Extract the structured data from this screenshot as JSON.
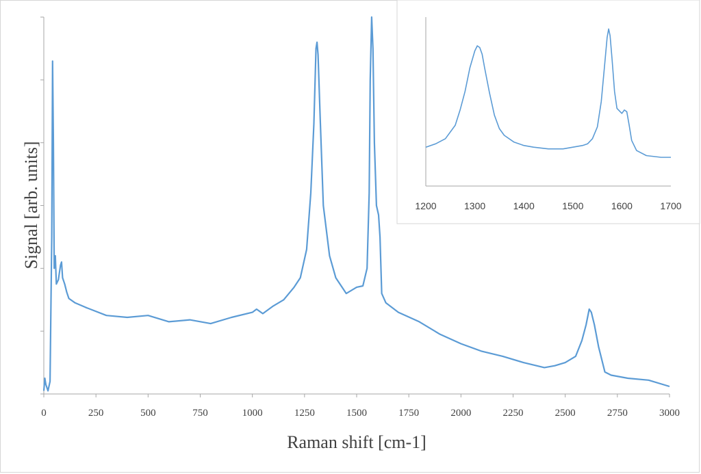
{
  "chart_data": [
    {
      "type": "line",
      "xlabel": "Raman shift [cm-1]",
      "ylabel": "Signal [arb. units]",
      "xlim": [
        0,
        3000
      ],
      "ylim": [
        0,
        6
      ],
      "x_ticks": [
        0,
        250,
        500,
        750,
        1000,
        1250,
        1500,
        1750,
        2000,
        2250,
        2500,
        2750,
        3000
      ],
      "y_ticks_labeled": false,
      "grid": false,
      "line_color": "#5b9bd5",
      "series": [
        {
          "x": [
            0,
            5,
            10,
            20,
            30,
            38,
            42,
            46,
            50,
            55,
            60,
            70,
            80,
            85,
            90,
            100,
            110,
            120,
            150,
            200,
            300,
            400,
            500,
            600,
            700,
            800,
            900,
            1000,
            1020,
            1050,
            1100,
            1150,
            1200,
            1230,
            1260,
            1280,
            1295,
            1305,
            1310,
            1315,
            1325,
            1340,
            1370,
            1400,
            1450,
            1500,
            1530,
            1550,
            1560,
            1565,
            1572,
            1578,
            1585,
            1595,
            1605,
            1612,
            1620,
            1640,
            1700,
            1800,
            1900,
            2000,
            2100,
            2200,
            2300,
            2400,
            2450,
            2500,
            2550,
            2580,
            2600,
            2615,
            2625,
            2640,
            2660,
            2690,
            2720,
            2800,
            2900,
            3000
          ],
          "y": [
            0.05,
            0.25,
            0.15,
            0.05,
            0.2,
            2.5,
            5.3,
            4.0,
            2.0,
            2.2,
            1.75,
            1.82,
            2.05,
            2.1,
            1.85,
            1.75,
            1.62,
            1.52,
            1.45,
            1.38,
            1.25,
            1.22,
            1.25,
            1.15,
            1.18,
            1.12,
            1.22,
            1.3,
            1.35,
            1.28,
            1.4,
            1.5,
            1.7,
            1.85,
            2.3,
            3.2,
            4.3,
            5.5,
            5.6,
            5.4,
            4.4,
            3.0,
            2.2,
            1.85,
            1.6,
            1.7,
            1.72,
            2.0,
            3.2,
            5.0,
            6.0,
            5.5,
            4.0,
            3.0,
            2.85,
            2.5,
            1.6,
            1.45,
            1.3,
            1.15,
            0.95,
            0.8,
            0.68,
            0.6,
            0.5,
            0.42,
            0.45,
            0.5,
            0.6,
            0.85,
            1.1,
            1.35,
            1.3,
            1.1,
            0.75,
            0.35,
            0.3,
            0.25,
            0.22,
            0.12
          ]
        }
      ]
    },
    {
      "type": "line",
      "xlim": [
        1200,
        1700
      ],
      "ylim": [
        0,
        1
      ],
      "x_ticks": [
        1200,
        1300,
        1400,
        1500,
        1600,
        1700
      ],
      "y_ticks_labeled": false,
      "grid": false,
      "line_color": "#5b9bd5",
      "series": [
        {
          "x": [
            1200,
            1220,
            1240,
            1260,
            1270,
            1280,
            1290,
            1300,
            1305,
            1310,
            1315,
            1320,
            1330,
            1340,
            1350,
            1360,
            1380,
            1400,
            1420,
            1450,
            1480,
            1500,
            1520,
            1530,
            1540,
            1550,
            1558,
            1565,
            1570,
            1573,
            1576,
            1580,
            1585,
            1590,
            1600,
            1605,
            1610,
            1615,
            1620,
            1630,
            1650,
            1680,
            1700
          ],
          "y": [
            0.23,
            0.25,
            0.28,
            0.36,
            0.45,
            0.56,
            0.7,
            0.8,
            0.83,
            0.82,
            0.78,
            0.7,
            0.55,
            0.42,
            0.34,
            0.3,
            0.26,
            0.24,
            0.23,
            0.22,
            0.22,
            0.23,
            0.24,
            0.25,
            0.28,
            0.35,
            0.5,
            0.72,
            0.88,
            0.93,
            0.89,
            0.75,
            0.56,
            0.46,
            0.43,
            0.45,
            0.44,
            0.36,
            0.27,
            0.21,
            0.18,
            0.17,
            0.17
          ]
        }
      ]
    }
  ]
}
